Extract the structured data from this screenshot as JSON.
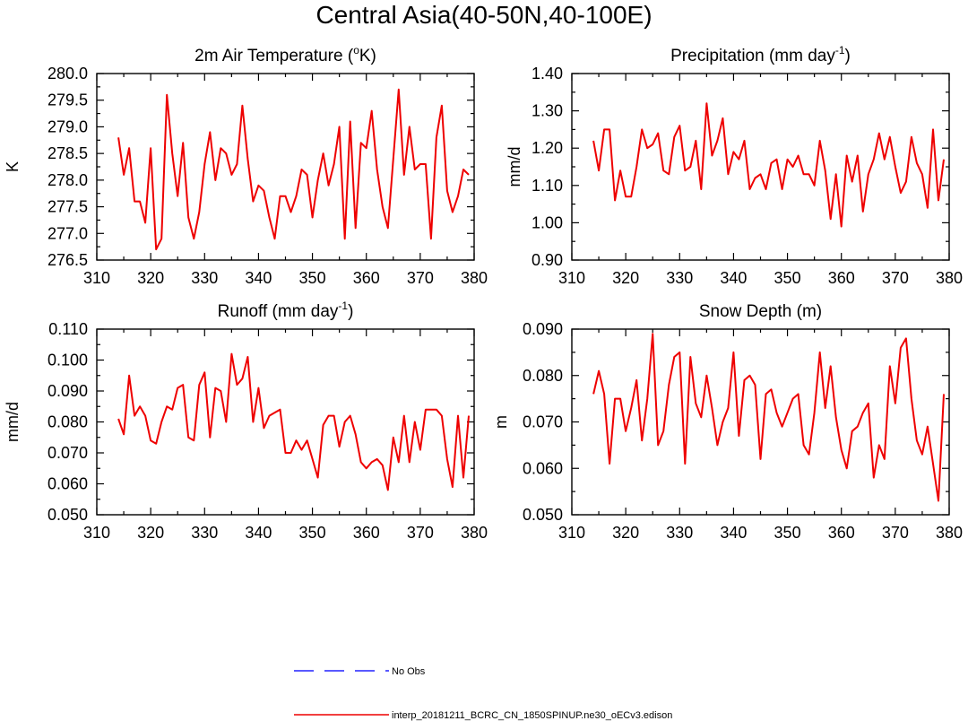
{
  "page": {
    "title": "Central Asia(40-50N,40-100E)"
  },
  "legend": {
    "entries": [
      {
        "label": "No Obs",
        "style": "dashed",
        "color": "#2222ff"
      },
      {
        "label": "interp_20181211_BCRC_CN_1850SPINUP.ne30_oECv3.edison",
        "style": "solid",
        "color": "#ee0000"
      }
    ]
  },
  "chart_data": [
    {
      "type": "line",
      "title": "2m Air Temperature (",
      "title_sup": "o",
      "title_tail": "K)",
      "ylabel": "K",
      "xlim": [
        310,
        380
      ],
      "ylim": [
        276.5,
        280.0
      ],
      "xticks": [
        "310",
        "320",
        "330",
        "340",
        "350",
        "360",
        "370",
        "380"
      ],
      "yticks": [
        "276.5",
        "277.0",
        "277.5",
        "278.0",
        "278.5",
        "279.0",
        "279.5",
        "280.0"
      ],
      "series": [
        {
          "color": "#ee0000",
          "x": [
            314,
            315,
            316,
            317,
            318,
            319,
            320,
            321,
            322,
            323,
            324,
            325,
            326,
            327,
            328,
            329,
            330,
            331,
            332,
            333,
            334,
            335,
            336,
            337,
            338,
            339,
            340,
            341,
            342,
            343,
            344,
            345,
            346,
            347,
            348,
            349,
            350,
            351,
            352,
            353,
            354,
            355,
            356,
            357,
            358,
            359,
            360,
            361,
            362,
            363,
            364,
            365,
            366,
            367,
            368,
            369,
            370,
            371,
            372,
            373,
            374,
            375,
            376,
            377,
            378,
            379
          ],
          "y": [
            278.8,
            278.1,
            278.6,
            277.6,
            277.6,
            277.2,
            278.6,
            276.7,
            276.9,
            279.6,
            278.5,
            277.7,
            278.7,
            277.3,
            276.9,
            277.4,
            278.3,
            278.9,
            278.0,
            278.6,
            278.5,
            278.1,
            278.3,
            279.4,
            278.4,
            277.6,
            277.9,
            277.8,
            277.3,
            276.9,
            277.7,
            277.7,
            277.4,
            277.7,
            278.2,
            278.1,
            277.3,
            278.0,
            278.5,
            277.9,
            278.3,
            279.0,
            276.9,
            279.1,
            277.1,
            278.7,
            278.6,
            279.3,
            278.2,
            277.5,
            277.1,
            278.4,
            279.7,
            278.1,
            279.0,
            278.2,
            278.3,
            278.3,
            276.9,
            278.8,
            279.4,
            277.8,
            277.4,
            277.7,
            278.2,
            278.1
          ]
        }
      ]
    },
    {
      "type": "line",
      "title": "Precipitation (mm day",
      "title_sup": "-1",
      "title_tail": ")",
      "ylabel": "mm/d",
      "xlim": [
        310,
        380
      ],
      "ylim": [
        0.9,
        1.4
      ],
      "xticks": [
        "310",
        "320",
        "330",
        "340",
        "350",
        "360",
        "370",
        "380"
      ],
      "yticks": [
        "0.90",
        "1.00",
        "1.10",
        "1.20",
        "1.30",
        "1.40"
      ],
      "series": [
        {
          "color": "#ee0000",
          "x": [
            314,
            315,
            316,
            317,
            318,
            319,
            320,
            321,
            322,
            323,
            324,
            325,
            326,
            327,
            328,
            329,
            330,
            331,
            332,
            333,
            334,
            335,
            336,
            337,
            338,
            339,
            340,
            341,
            342,
            343,
            344,
            345,
            346,
            347,
            348,
            349,
            350,
            351,
            352,
            353,
            354,
            355,
            356,
            357,
            358,
            359,
            360,
            361,
            362,
            363,
            364,
            365,
            366,
            367,
            368,
            369,
            370,
            371,
            372,
            373,
            374,
            375,
            376,
            377,
            378,
            379
          ],
          "y": [
            1.22,
            1.14,
            1.25,
            1.25,
            1.06,
            1.14,
            1.07,
            1.07,
            1.15,
            1.25,
            1.2,
            1.21,
            1.24,
            1.14,
            1.13,
            1.23,
            1.26,
            1.14,
            1.15,
            1.22,
            1.09,
            1.32,
            1.18,
            1.22,
            1.28,
            1.13,
            1.19,
            1.17,
            1.22,
            1.09,
            1.12,
            1.13,
            1.09,
            1.16,
            1.17,
            1.09,
            1.17,
            1.15,
            1.18,
            1.13,
            1.13,
            1.1,
            1.22,
            1.14,
            1.01,
            1.13,
            0.99,
            1.18,
            1.11,
            1.18,
            1.03,
            1.13,
            1.17,
            1.24,
            1.17,
            1.23,
            1.15,
            1.08,
            1.11,
            1.23,
            1.16,
            1.13,
            1.04,
            1.25,
            1.06,
            1.17
          ]
        }
      ]
    },
    {
      "type": "line",
      "title": "Runoff (mm day",
      "title_sup": "-1",
      "title_tail": ")",
      "ylabel": "mm/d",
      "xlim": [
        310,
        380
      ],
      "ylim": [
        0.05,
        0.11
      ],
      "xticks": [
        "310",
        "320",
        "330",
        "340",
        "350",
        "360",
        "370",
        "380"
      ],
      "yticks": [
        "0.050",
        "0.060",
        "0.070",
        "0.080",
        "0.090",
        "0.100",
        "0.110"
      ],
      "series": [
        {
          "color": "#ee0000",
          "x": [
            314,
            315,
            316,
            317,
            318,
            319,
            320,
            321,
            322,
            323,
            324,
            325,
            326,
            327,
            328,
            329,
            330,
            331,
            332,
            333,
            334,
            335,
            336,
            337,
            338,
            339,
            340,
            341,
            342,
            343,
            344,
            345,
            346,
            347,
            348,
            349,
            350,
            351,
            352,
            353,
            354,
            355,
            356,
            357,
            358,
            359,
            360,
            361,
            362,
            363,
            364,
            365,
            366,
            367,
            368,
            369,
            370,
            371,
            372,
            373,
            374,
            375,
            376,
            377,
            378,
            379
          ],
          "y": [
            0.081,
            0.076,
            0.095,
            0.082,
            0.085,
            0.082,
            0.074,
            0.073,
            0.08,
            0.085,
            0.084,
            0.091,
            0.092,
            0.075,
            0.074,
            0.092,
            0.096,
            0.075,
            0.091,
            0.09,
            0.08,
            0.102,
            0.092,
            0.094,
            0.101,
            0.08,
            0.091,
            0.078,
            0.082,
            0.083,
            0.084,
            0.07,
            0.07,
            0.074,
            0.071,
            0.074,
            0.068,
            0.062,
            0.079,
            0.082,
            0.082,
            0.072,
            0.08,
            0.082,
            0.076,
            0.067,
            0.065,
            0.067,
            0.068,
            0.066,
            0.058,
            0.075,
            0.067,
            0.082,
            0.067,
            0.08,
            0.071,
            0.084,
            0.084,
            0.084,
            0.082,
            0.068,
            0.059,
            0.082,
            0.062,
            0.082
          ]
        }
      ]
    },
    {
      "type": "line",
      "title": "Snow Depth (m)",
      "title_sup": "",
      "title_tail": "",
      "ylabel": "m",
      "xlim": [
        310,
        380
      ],
      "ylim": [
        0.05,
        0.09
      ],
      "xticks": [
        "310",
        "320",
        "330",
        "340",
        "350",
        "360",
        "370",
        "380"
      ],
      "yticks": [
        "0.050",
        "0.060",
        "0.070",
        "0.080",
        "0.090"
      ],
      "series": [
        {
          "color": "#ee0000",
          "x": [
            314,
            315,
            316,
            317,
            318,
            319,
            320,
            321,
            322,
            323,
            324,
            325,
            326,
            327,
            328,
            329,
            330,
            331,
            332,
            333,
            334,
            335,
            336,
            337,
            338,
            339,
            340,
            341,
            342,
            343,
            344,
            345,
            346,
            347,
            348,
            349,
            350,
            351,
            352,
            353,
            354,
            355,
            356,
            357,
            358,
            359,
            360,
            361,
            362,
            363,
            364,
            365,
            366,
            367,
            368,
            369,
            370,
            371,
            372,
            373,
            374,
            375,
            376,
            377,
            378,
            379
          ],
          "y": [
            0.076,
            0.081,
            0.076,
            0.061,
            0.075,
            0.075,
            0.068,
            0.073,
            0.079,
            0.066,
            0.075,
            0.089,
            0.065,
            0.068,
            0.078,
            0.084,
            0.085,
            0.061,
            0.084,
            0.074,
            0.071,
            0.08,
            0.073,
            0.065,
            0.07,
            0.073,
            0.085,
            0.067,
            0.079,
            0.08,
            0.078,
            0.062,
            0.076,
            0.077,
            0.072,
            0.069,
            0.072,
            0.075,
            0.076,
            0.065,
            0.063,
            0.072,
            0.085,
            0.073,
            0.082,
            0.071,
            0.064,
            0.06,
            0.068,
            0.069,
            0.072,
            0.074,
            0.058,
            0.065,
            0.062,
            0.082,
            0.074,
            0.086,
            0.088,
            0.075,
            0.066,
            0.063,
            0.069,
            0.061,
            0.053,
            0.076
          ]
        }
      ]
    }
  ]
}
